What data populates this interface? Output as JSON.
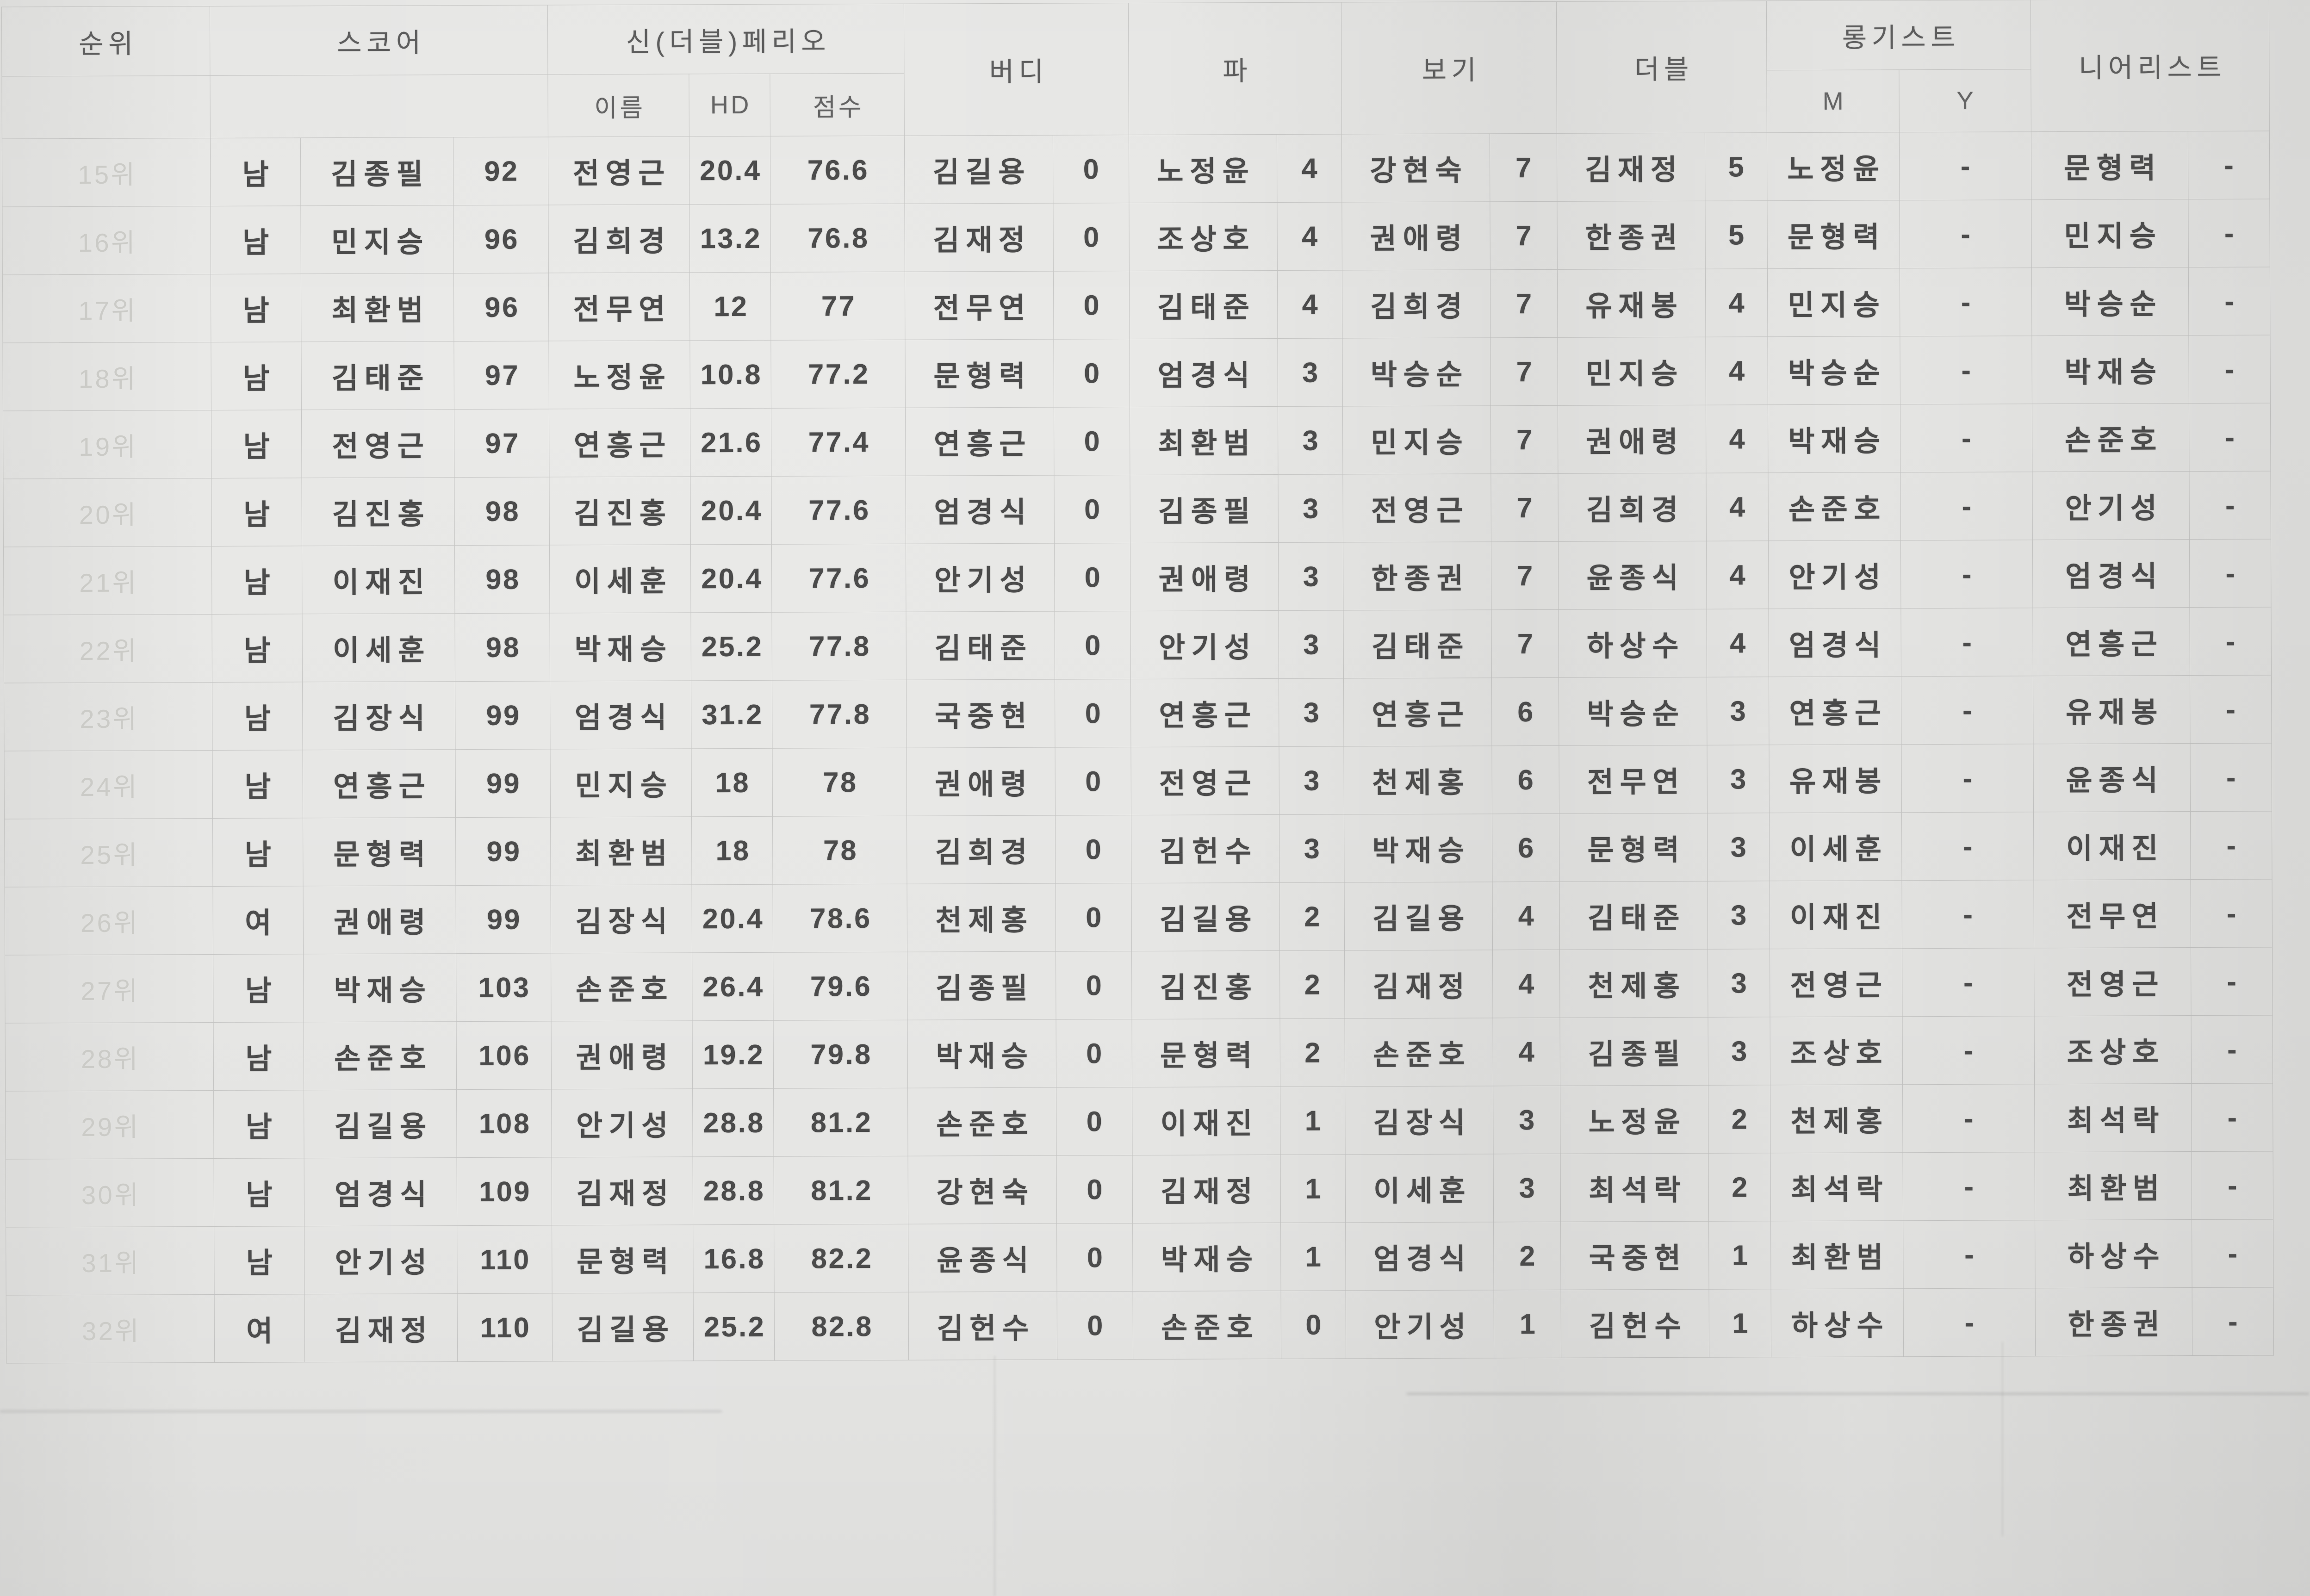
{
  "table": {
    "headers": {
      "rank": "순위",
      "score": "스코어",
      "peoria": "신(더블)페리오",
      "peoria_name": "이름",
      "peoria_hd": "HD",
      "peoria_score": "점수",
      "birdie": "버디",
      "par": "파",
      "bogey": "보기",
      "double": "더블",
      "longest": "롱기스트",
      "longest_m": "M",
      "longest_y": "Y",
      "nearest": "니어리스트"
    },
    "rows": [
      {
        "r": "15위",
        "g": "남",
        "sn": "김종필",
        "ss": "92",
        "pn": "전영근",
        "ph": "20.4",
        "ps": "76.6",
        "bn": "김길용",
        "bc": "0",
        "pan": "노정윤",
        "pac": "4",
        "bon": "강현숙",
        "boc": "7",
        "dn": "김재정",
        "dc": "5",
        "lm": "노정윤",
        "ly": "-",
        "nn": "문형력",
        "nv": "-"
      },
      {
        "r": "16위",
        "g": "남",
        "sn": "민지승",
        "ss": "96",
        "pn": "김희경",
        "ph": "13.2",
        "ps": "76.8",
        "bn": "김재정",
        "bc": "0",
        "pan": "조상호",
        "pac": "4",
        "bon": "권애령",
        "boc": "7",
        "dn": "한종권",
        "dc": "5",
        "lm": "문형력",
        "ly": "-",
        "nn": "민지승",
        "nv": "-"
      },
      {
        "r": "17위",
        "g": "남",
        "sn": "최환범",
        "ss": "96",
        "pn": "전무연",
        "ph": "12",
        "ps": "77",
        "bn": "전무연",
        "bc": "0",
        "pan": "김태준",
        "pac": "4",
        "bon": "김희경",
        "boc": "7",
        "dn": "유재봉",
        "dc": "4",
        "lm": "민지승",
        "ly": "-",
        "nn": "박승순",
        "nv": "-"
      },
      {
        "r": "18위",
        "g": "남",
        "sn": "김태준",
        "ss": "97",
        "pn": "노정윤",
        "ph": "10.8",
        "ps": "77.2",
        "bn": "문형력",
        "bc": "0",
        "pan": "엄경식",
        "pac": "3",
        "bon": "박승순",
        "boc": "7",
        "dn": "민지승",
        "dc": "4",
        "lm": "박승순",
        "ly": "-",
        "nn": "박재승",
        "nv": "-"
      },
      {
        "r": "19위",
        "g": "남",
        "sn": "전영근",
        "ss": "97",
        "pn": "연흥근",
        "ph": "21.6",
        "ps": "77.4",
        "bn": "연흥근",
        "bc": "0",
        "pan": "최환범",
        "pac": "3",
        "bon": "민지승",
        "boc": "7",
        "dn": "권애령",
        "dc": "4",
        "lm": "박재승",
        "ly": "-",
        "nn": "손준호",
        "nv": "-"
      },
      {
        "r": "20위",
        "g": "남",
        "sn": "김진홍",
        "ss": "98",
        "pn": "김진홍",
        "ph": "20.4",
        "ps": "77.6",
        "bn": "엄경식",
        "bc": "0",
        "pan": "김종필",
        "pac": "3",
        "bon": "전영근",
        "boc": "7",
        "dn": "김희경",
        "dc": "4",
        "lm": "손준호",
        "ly": "-",
        "nn": "안기성",
        "nv": "-"
      },
      {
        "r": "21위",
        "g": "남",
        "sn": "이재진",
        "ss": "98",
        "pn": "이세훈",
        "ph": "20.4",
        "ps": "77.6",
        "bn": "안기성",
        "bc": "0",
        "pan": "권애령",
        "pac": "3",
        "bon": "한종권",
        "boc": "7",
        "dn": "윤종식",
        "dc": "4",
        "lm": "안기성",
        "ly": "-",
        "nn": "엄경식",
        "nv": "-"
      },
      {
        "r": "22위",
        "g": "남",
        "sn": "이세훈",
        "ss": "98",
        "pn": "박재승",
        "ph": "25.2",
        "ps": "77.8",
        "bn": "김태준",
        "bc": "0",
        "pan": "안기성",
        "pac": "3",
        "bon": "김태준",
        "boc": "7",
        "dn": "하상수",
        "dc": "4",
        "lm": "엄경식",
        "ly": "-",
        "nn": "연흥근",
        "nv": "-"
      },
      {
        "r": "23위",
        "g": "남",
        "sn": "김장식",
        "ss": "99",
        "pn": "엄경식",
        "ph": "31.2",
        "ps": "77.8",
        "bn": "국중현",
        "bc": "0",
        "pan": "연흥근",
        "pac": "3",
        "bon": "연흥근",
        "boc": "6",
        "dn": "박승순",
        "dc": "3",
        "lm": "연흥근",
        "ly": "-",
        "nn": "유재봉",
        "nv": "-"
      },
      {
        "r": "24위",
        "g": "남",
        "sn": "연흥근",
        "ss": "99",
        "pn": "민지승",
        "ph": "18",
        "ps": "78",
        "bn": "권애령",
        "bc": "0",
        "pan": "전영근",
        "pac": "3",
        "bon": "천제홍",
        "boc": "6",
        "dn": "전무연",
        "dc": "3",
        "lm": "유재봉",
        "ly": "-",
        "nn": "윤종식",
        "nv": "-"
      },
      {
        "r": "25위",
        "g": "남",
        "sn": "문형력",
        "ss": "99",
        "pn": "최환범",
        "ph": "18",
        "ps": "78",
        "bn": "김희경",
        "bc": "0",
        "pan": "김헌수",
        "pac": "3",
        "bon": "박재승",
        "boc": "6",
        "dn": "문형력",
        "dc": "3",
        "lm": "이세훈",
        "ly": "-",
        "nn": "이재진",
        "nv": "-"
      },
      {
        "r": "26위",
        "g": "여",
        "sn": "권애령",
        "ss": "99",
        "pn": "김장식",
        "ph": "20.4",
        "ps": "78.6",
        "bn": "천제홍",
        "bc": "0",
        "pan": "김길용",
        "pac": "2",
        "bon": "김길용",
        "boc": "4",
        "dn": "김태준",
        "dc": "3",
        "lm": "이재진",
        "ly": "-",
        "nn": "전무연",
        "nv": "-"
      },
      {
        "r": "27위",
        "g": "남",
        "sn": "박재승",
        "ss": "103",
        "pn": "손준호",
        "ph": "26.4",
        "ps": "79.6",
        "bn": "김종필",
        "bc": "0",
        "pan": "김진홍",
        "pac": "2",
        "bon": "김재정",
        "boc": "4",
        "dn": "천제홍",
        "dc": "3",
        "lm": "전영근",
        "ly": "-",
        "nn": "전영근",
        "nv": "-"
      },
      {
        "r": "28위",
        "g": "남",
        "sn": "손준호",
        "ss": "106",
        "pn": "권애령",
        "ph": "19.2",
        "ps": "79.8",
        "bn": "박재승",
        "bc": "0",
        "pan": "문형력",
        "pac": "2",
        "bon": "손준호",
        "boc": "4",
        "dn": "김종필",
        "dc": "3",
        "lm": "조상호",
        "ly": "-",
        "nn": "조상호",
        "nv": "-"
      },
      {
        "r": "29위",
        "g": "남",
        "sn": "김길용",
        "ss": "108",
        "pn": "안기성",
        "ph": "28.8",
        "ps": "81.2",
        "bn": "손준호",
        "bc": "0",
        "pan": "이재진",
        "pac": "1",
        "bon": "김장식",
        "boc": "3",
        "dn": "노정윤",
        "dc": "2",
        "lm": "천제홍",
        "ly": "-",
        "nn": "최석락",
        "nv": "-"
      },
      {
        "r": "30위",
        "g": "남",
        "sn": "엄경식",
        "ss": "109",
        "pn": "김재정",
        "ph": "28.8",
        "ps": "81.2",
        "bn": "강현숙",
        "bc": "0",
        "pan": "김재정",
        "pac": "1",
        "bon": "이세훈",
        "boc": "3",
        "dn": "최석락",
        "dc": "2",
        "lm": "최석락",
        "ly": "-",
        "nn": "최환범",
        "nv": "-"
      },
      {
        "r": "31위",
        "g": "남",
        "sn": "안기성",
        "ss": "110",
        "pn": "문형력",
        "ph": "16.8",
        "ps": "82.2",
        "bn": "윤종식",
        "bc": "0",
        "pan": "박재승",
        "pac": "1",
        "bon": "엄경식",
        "boc": "2",
        "dn": "국중현",
        "dc": "1",
        "lm": "최환범",
        "ly": "-",
        "nn": "하상수",
        "nv": "-"
      },
      {
        "r": "32위",
        "g": "여",
        "sn": "김재정",
        "ss": "110",
        "pn": "김길용",
        "ph": "25.2",
        "ps": "82.8",
        "bn": "김헌수",
        "bc": "0",
        "pan": "손준호",
        "pac": "0",
        "bon": "안기성",
        "boc": "1",
        "dn": "김헌수",
        "dc": "1",
        "lm": "하상수",
        "ly": "-",
        "nn": "한종권",
        "nv": "-"
      }
    ]
  },
  "colors": {
    "paper": "#e9e9e7",
    "ink": "#4b4b4b",
    "header_ink": "#5d5d5d",
    "faint_rank_ink": "#cbcbc7",
    "gridline": "rgba(120,120,118,0.30)"
  }
}
